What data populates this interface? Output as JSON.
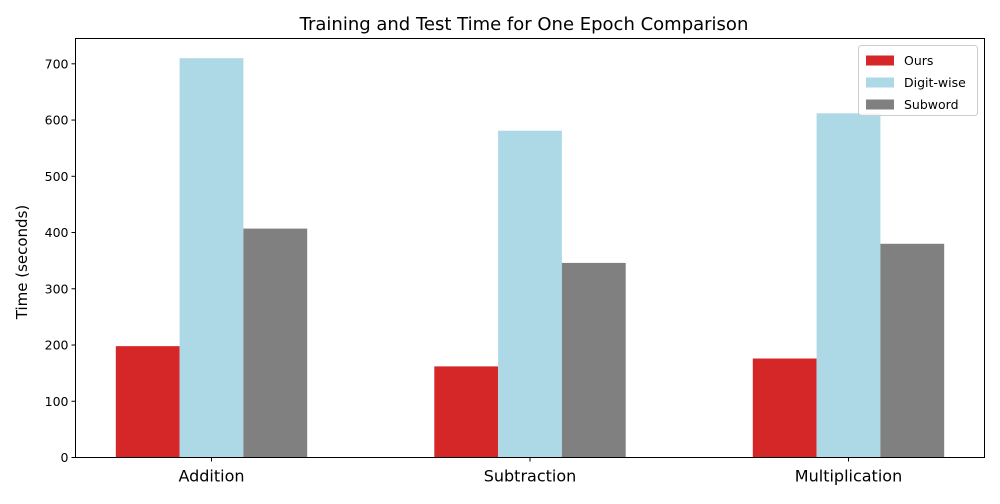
{
  "chart_data": {
    "type": "bar",
    "title": "Training and Test Time for One Epoch Comparison",
    "xlabel": "",
    "ylabel": "Time (seconds)",
    "categories": [
      "Addition",
      "Subtraction",
      "Multiplication"
    ],
    "series": [
      {
        "name": "Ours",
        "values": [
          198,
          162,
          176
        ],
        "color": "#d62728"
      },
      {
        "name": "Digit-wise",
        "values": [
          710,
          581,
          612
        ],
        "color": "#add8e6"
      },
      {
        "name": "Subword",
        "values": [
          407,
          346,
          380
        ],
        "color": "#808080"
      }
    ],
    "ylim": [
      0,
      745
    ],
    "yticks": [
      0,
      100,
      200,
      300,
      400,
      500,
      600,
      700
    ],
    "legend_position": "top-right",
    "grid": false
  }
}
